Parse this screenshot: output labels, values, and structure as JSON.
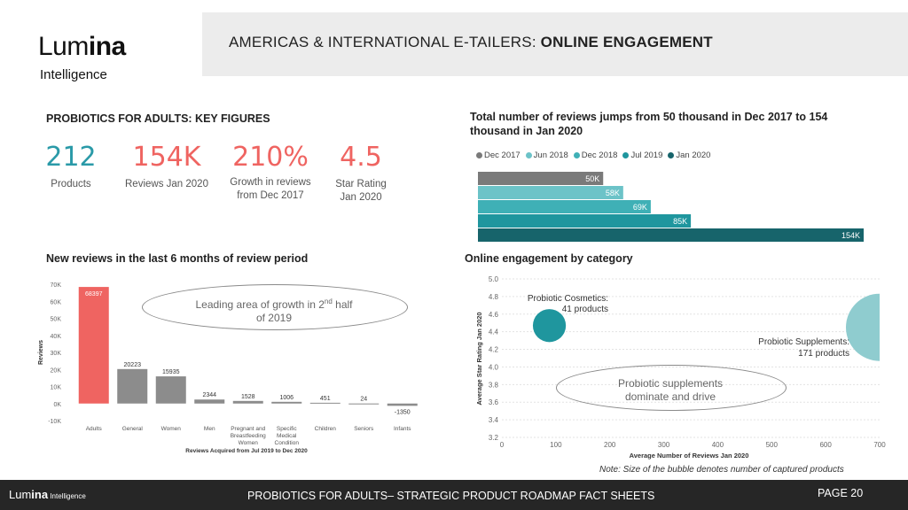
{
  "header": {
    "title_prefix": "AMERICAS & INTERNATIONAL E-TAILERS: ",
    "title_bold": "ONLINE ENGAGEMENT"
  },
  "logo": {
    "word_light": "Lum",
    "word_bold": "ina",
    "sub": "Intelligence"
  },
  "key_figures": {
    "title": "PROBIOTICS FOR ADULTS: KEY FIGURES",
    "items": [
      {
        "value": "212",
        "label1": "Products",
        "label2": "",
        "color": "#2a9aa8"
      },
      {
        "value": "154K",
        "label1": "Reviews Jan 2020",
        "label2": "",
        "color": "#ef6461"
      },
      {
        "value": "210%",
        "label1": "Growth in reviews",
        "label2": "from Dec 2017",
        "color": "#ef6461"
      },
      {
        "value": "4.5",
        "label1": "Star Rating",
        "label2": "Jan 2020",
        "color": "#ef6461"
      }
    ]
  },
  "reviews_chart": {
    "title_line1": "Total number of reviews jumps from 50 thousand in Dec 2017 to 154",
    "title_line2": "thousand in Jan 2020"
  },
  "new_reviews_chart": {
    "title": "New reviews in the last 6 months of review period",
    "annotation_line1": "Leading area of growth in 2",
    "annotation_sup": "nd",
    "annotation_line1_end": " half",
    "annotation_line2": "of 2019"
  },
  "engagement_chart": {
    "title": "Online engagement by category",
    "annotation_line1": "Probiotic supplements",
    "annotation_line2": "dominate and drive",
    "note": "Note: Size of the bubble denotes number of captured products"
  },
  "footer": {
    "logo_light": "Lum",
    "logo_bold": "ina",
    "logo_sub": " Intelligence",
    "text": "PROBIOTICS  FOR ADULTS– STRATEGIC PRODUCT ROADMAP FACT SHEETS",
    "page": "PAGE 20"
  },
  "chart_data": [
    {
      "type": "bar",
      "orientation": "horizontal",
      "categories": [
        "Dec 2017",
        "Jun 2018",
        "Dec 2018",
        "Jul 2019",
        "Jan 2020"
      ],
      "values": [
        50,
        58,
        69,
        85,
        154
      ],
      "value_labels": [
        "50K",
        "58K",
        "69K",
        "85K",
        "154K"
      ],
      "colors": [
        "#7a7a7a",
        "#6cc3c8",
        "#3fb0b6",
        "#1f969e",
        "#17646b"
      ],
      "legend_position": "top",
      "xlim": [
        0,
        154
      ]
    },
    {
      "type": "bar",
      "categories": [
        "Adults",
        "General",
        "Women",
        "Men",
        "Pregnant and Breastfeeding Women",
        "Specific Medical Condition",
        "Children",
        "Seniors",
        "Infants"
      ],
      "category_lines": [
        [
          "Adults"
        ],
        [
          "General"
        ],
        [
          "Women"
        ],
        [
          "Men"
        ],
        [
          "Pregnant and",
          "Breastfeeding",
          "Women"
        ],
        [
          "Specific",
          "Medical",
          "Condition"
        ],
        [
          "Children"
        ],
        [
          "Seniors"
        ],
        [
          "Infants"
        ]
      ],
      "values": [
        68397,
        20223,
        15935,
        2344,
        1528,
        1006,
        451,
        24,
        -1350
      ],
      "highlight_color": "#ef6461",
      "bar_color": "#8c8c8c",
      "xlabel": "Reviews Acquired from Jul 2019 to Dec 2020",
      "ylabel": "Reviews",
      "ylim": [
        -10000,
        70000
      ],
      "yticks": [
        -10000,
        0,
        10000,
        20000,
        30000,
        40000,
        50000,
        60000,
        70000
      ],
      "ytick_labels": [
        "-10K",
        "0K",
        "10K",
        "20K",
        "30K",
        "40K",
        "50K",
        "60K",
        "70K"
      ]
    },
    {
      "type": "scatter",
      "xlabel": "Average Number of Reviews Jan 2020",
      "ylabel": "Average Star Rating Jan 2020",
      "xlim": [
        0,
        700
      ],
      "ylim": [
        3.2,
        5.0
      ],
      "xticks": [
        0,
        100,
        200,
        300,
        400,
        500,
        600,
        700
      ],
      "yticks": [
        3.2,
        3.4,
        3.6,
        3.8,
        4.0,
        4.2,
        4.4,
        4.6,
        4.8,
        5.0
      ],
      "points": [
        {
          "name": "Probiotic Cosmetics:",
          "sublabel": "41 products",
          "x": 88,
          "y": 4.47,
          "size": 41,
          "color": "#1f969e"
        },
        {
          "name": "Probiotic Supplements:",
          "sublabel": "171 products",
          "x": 700,
          "y": 4.45,
          "size": 171,
          "color": "#8fcccf"
        }
      ]
    }
  ]
}
